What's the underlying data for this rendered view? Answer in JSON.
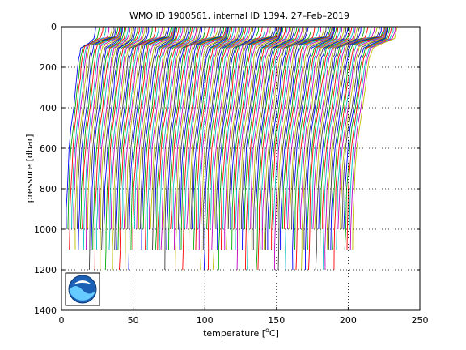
{
  "chart_data": {
    "type": "line",
    "title": "WMO ID 1900561, internal ID 1394, 27–Feb–2019",
    "xlabel_pre": "temperature [",
    "xlabel_sup": "o",
    "xlabel_post": "C]",
    "ylabel": "pressure [dbar]",
    "xlim": [
      0,
      250
    ],
    "ylim": [
      0,
      1400
    ],
    "y_reversed": true,
    "grid": true,
    "x_ticks": [
      0,
      50,
      100,
      150,
      200,
      250
    ],
    "y_ticks": [
      0,
      200,
      400,
      600,
      800,
      1000,
      1200,
      1400
    ],
    "series_count": 160,
    "offset_step": 1.25,
    "first_profile_offset": 0,
    "profile_shape": {
      "pressure": [
        0,
        20,
        50,
        70,
        90,
        120,
        150,
        200,
        250,
        300,
        400,
        500,
        600,
        700,
        800,
        900,
        1000,
        1100,
        1200
      ],
      "temperature": [
        24,
        23.7,
        22.5,
        19,
        13.5,
        12.6,
        12.0,
        11.2,
        10.5,
        9.8,
        8.4,
        6.7,
        5.4,
        4.6,
        4.0,
        3.6,
        3.3,
        3.1,
        2.9
      ]
    },
    "colors": [
      "#0000ff",
      "#00aa00",
      "#ff0000",
      "#00bfbf",
      "#bf00bf",
      "#bfbf00",
      "#404040"
    ],
    "logo": "noaa-logo"
  }
}
